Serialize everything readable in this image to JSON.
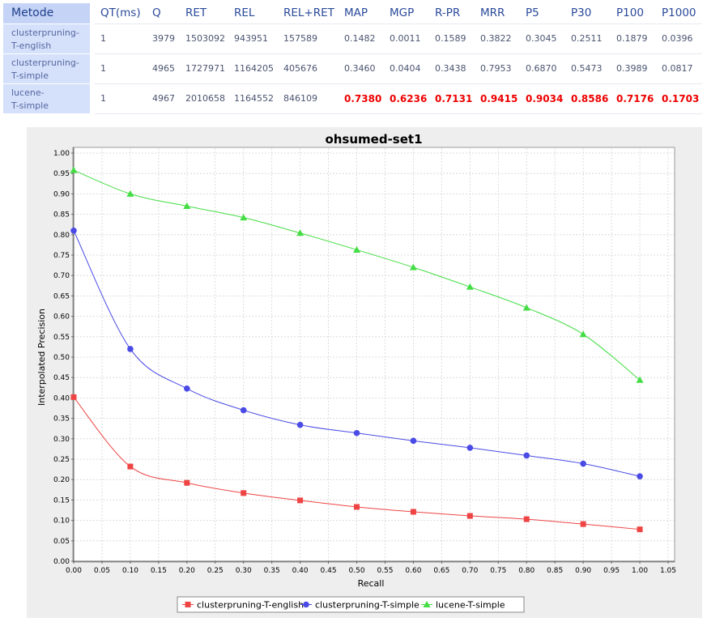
{
  "table": {
    "method_header": "Metode",
    "columns": [
      "QT(ms)",
      "Q",
      "RET",
      "REL",
      "REL+RET",
      "MAP",
      "MGP",
      "R-PR",
      "MRR",
      "P5",
      "P30",
      "P100",
      "P1000"
    ],
    "rows": [
      {
        "method_lines": [
          "clusterpruning-",
          "T-english"
        ],
        "values": [
          "1",
          "3979",
          "1503092",
          "943951",
          "157589",
          "0.1482",
          "0.0011",
          "0.1589",
          "0.3822",
          "0.3045",
          "0.2511",
          "0.1879",
          "0.0396"
        ]
      },
      {
        "method_lines": [
          "clusterpruning-",
          "T-simple"
        ],
        "values": [
          "1",
          "4965",
          "1727971",
          "1164205",
          "405676",
          "0.3460",
          "0.0404",
          "0.3438",
          "0.7953",
          "0.6870",
          "0.5473",
          "0.3989",
          "0.0817"
        ]
      },
      {
        "method_lines": [
          "lucene-",
          "T-simple"
        ],
        "values": [
          "1",
          "4967",
          "2010658",
          "1164552",
          "846109",
          "0.7380",
          "0.6236",
          "0.7131",
          "0.9415",
          "0.9034",
          "0.8586",
          "0.7176",
          "0.1703"
        ]
      }
    ],
    "highlight_row": 2,
    "highlight_from_col": 5,
    "colors": {
      "method_header_bg": "#c4d3f6",
      "method_cell_bg": "#d5e0fb",
      "highlight": "#ee0000"
    }
  },
  "chart_data": {
    "type": "line",
    "title": "ohsumed-set1",
    "xlabel": "Recall",
    "ylabel": "Interpolated Precision",
    "xlim": [
      0,
      1.05
    ],
    "ylim": [
      0,
      1.0
    ],
    "x_ticks": [
      "0.00",
      "0.05",
      "0.10",
      "0.15",
      "0.20",
      "0.25",
      "0.30",
      "0.35",
      "0.40",
      "0.45",
      "0.50",
      "0.55",
      "0.60",
      "0.65",
      "0.70",
      "0.75",
      "0.80",
      "0.85",
      "0.90",
      "0.95",
      "1.00",
      "1.05"
    ],
    "y_ticks": [
      "0.00",
      "0.05",
      "0.10",
      "0.15",
      "0.20",
      "0.25",
      "0.30",
      "0.35",
      "0.40",
      "0.45",
      "0.50",
      "0.55",
      "0.60",
      "0.65",
      "0.70",
      "0.75",
      "0.80",
      "0.85",
      "0.90",
      "0.95",
      "1.00"
    ],
    "x": [
      0.0,
      0.1,
      0.2,
      0.3,
      0.4,
      0.5,
      0.6,
      0.7,
      0.8,
      0.9,
      1.0
    ],
    "series": [
      {
        "name": "clusterpruning-T-english",
        "color": "#ee4444",
        "marker": "square",
        "values": [
          0.402,
          0.232,
          0.192,
          0.167,
          0.149,
          0.133,
          0.121,
          0.111,
          0.103,
          0.091,
          0.078
        ]
      },
      {
        "name": "clusterpruning-T-simple",
        "color": "#4a4ae6",
        "marker": "circle",
        "values": [
          0.81,
          0.52,
          0.423,
          0.37,
          0.334,
          0.314,
          0.295,
          0.278,
          0.259,
          0.239,
          0.208
        ]
      },
      {
        "name": "lucene-T-simple",
        "color": "#44dd44",
        "marker": "triangle",
        "values": [
          0.958,
          0.9,
          0.87,
          0.842,
          0.804,
          0.763,
          0.72,
          0.672,
          0.621,
          0.556,
          0.444
        ]
      }
    ],
    "grid": true,
    "legend": "bottom"
  }
}
